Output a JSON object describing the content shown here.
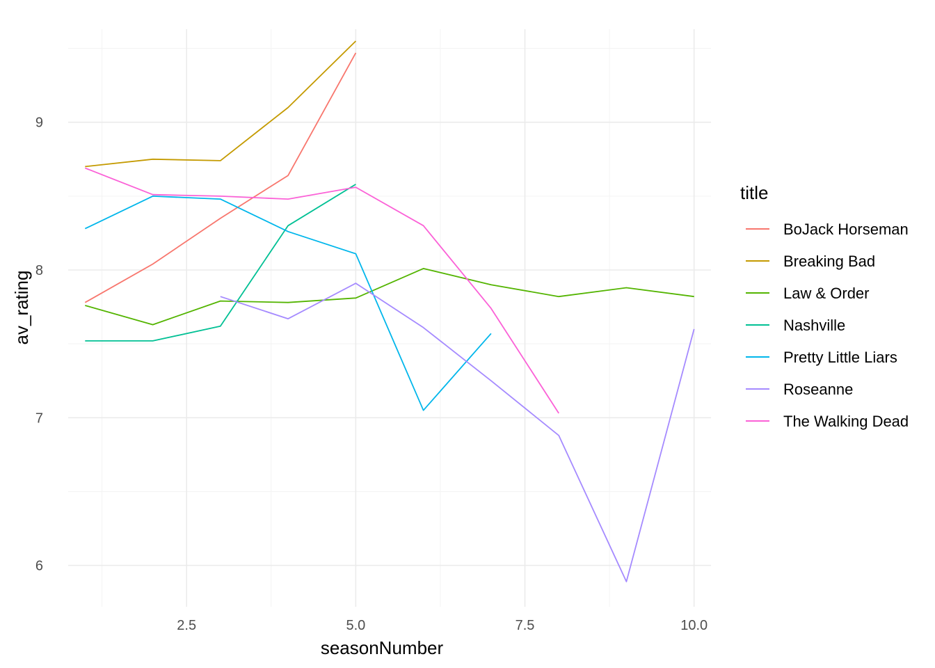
{
  "chart_data": {
    "type": "line",
    "xlabel": "seasonNumber",
    "ylabel": "av_rating",
    "xlim": [
      0.75,
      10.25
    ],
    "ylim": [
      5.72,
      9.63
    ],
    "x_ticks": [
      {
        "value": 2.5,
        "label": "2.5"
      },
      {
        "value": 5.0,
        "label": "5.0"
      },
      {
        "value": 7.5,
        "label": "7.5"
      },
      {
        "value": 10.0,
        "label": "10.0"
      }
    ],
    "y_ticks": [
      {
        "value": 6,
        "label": "6"
      },
      {
        "value": 7,
        "label": "7"
      },
      {
        "value": 8,
        "label": "8"
      },
      {
        "value": 9,
        "label": "9"
      }
    ],
    "grid": true,
    "legend": {
      "title": "title",
      "position": "right"
    },
    "series": [
      {
        "name": "BoJack Horseman",
        "color": "#F8766D",
        "points": [
          [
            1,
            7.78
          ],
          [
            2,
            8.04
          ],
          [
            3,
            8.35
          ],
          [
            4,
            8.64
          ],
          [
            5,
            9.47
          ]
        ]
      },
      {
        "name": "Breaking Bad",
        "color": "#C49A00",
        "points": [
          [
            1,
            8.7
          ],
          [
            2,
            8.75
          ],
          [
            3,
            8.74
          ],
          [
            4,
            9.1
          ],
          [
            5,
            9.55
          ]
        ]
      },
      {
        "name": "Law & Order",
        "color": "#53B400",
        "points": [
          [
            1,
            7.76
          ],
          [
            2,
            7.63
          ],
          [
            3,
            7.79
          ],
          [
            4,
            7.78
          ],
          [
            5,
            7.81
          ],
          [
            6,
            8.01
          ],
          [
            7,
            7.9
          ],
          [
            8,
            7.82
          ],
          [
            9,
            7.88
          ],
          [
            10,
            7.82
          ]
        ]
      },
      {
        "name": "Nashville",
        "color": "#00C094",
        "points": [
          [
            1,
            7.52
          ],
          [
            2,
            7.52
          ],
          [
            3,
            7.62
          ],
          [
            4,
            8.3
          ],
          [
            5,
            8.58
          ]
        ]
      },
      {
        "name": "Pretty Little Liars",
        "color": "#00B6EB",
        "points": [
          [
            1,
            8.28
          ],
          [
            2,
            8.5
          ],
          [
            3,
            8.48
          ],
          [
            4,
            8.26
          ],
          [
            5,
            8.11
          ],
          [
            6,
            7.05
          ],
          [
            7,
            7.57
          ]
        ]
      },
      {
        "name": "Roseanne",
        "color": "#A58AFF",
        "points": [
          [
            3,
            7.82
          ],
          [
            4,
            7.67
          ],
          [
            5,
            7.91
          ],
          [
            6,
            7.61
          ],
          [
            7,
            7.25
          ],
          [
            8,
            6.88
          ],
          [
            9,
            5.89
          ],
          [
            10,
            7.6
          ]
        ]
      },
      {
        "name": "The Walking Dead",
        "color": "#FB61D7",
        "points": [
          [
            1,
            8.69
          ],
          [
            2,
            8.51
          ],
          [
            3,
            8.5
          ],
          [
            4,
            8.48
          ],
          [
            5,
            8.56
          ],
          [
            6,
            8.3
          ],
          [
            7,
            7.74
          ],
          [
            8,
            7.03
          ]
        ]
      }
    ]
  }
}
